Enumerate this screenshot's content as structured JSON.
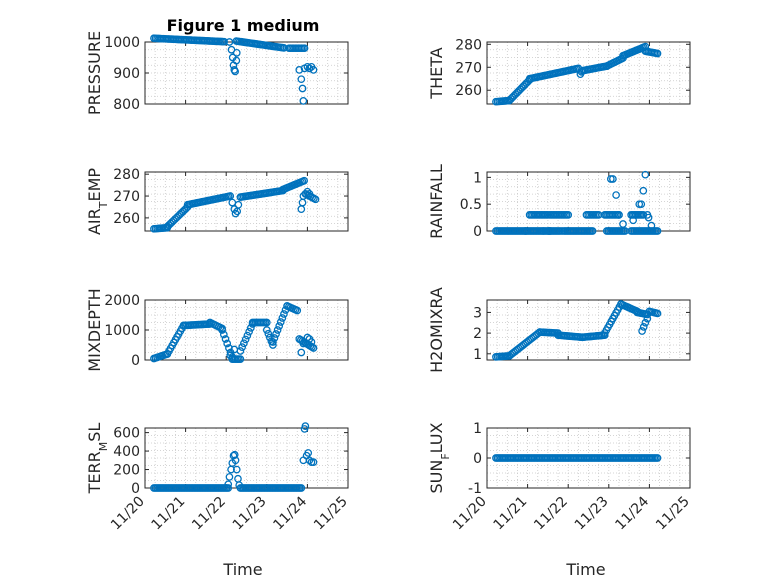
{
  "figure_title": "Figure 1 medium",
  "chart_data": [
    {
      "type": "scatter",
      "ylabel": "PRESSURE",
      "ylim": [
        800,
        1000
      ],
      "yticks": [
        800,
        900,
        1000
      ],
      "xlim": [
        "11/20",
        "11/25"
      ],
      "xticks": [
        "11/20",
        "11/21",
        "11/22",
        "11/23",
        "11/24",
        "11/25"
      ],
      "grid": true,
      "segments": [
        {
          "t": [
            0.22,
            1.95
          ],
          "y": [
            1012,
            1001
          ]
        },
        {
          "t": [
            2.25,
            3.42
          ],
          "y": [
            1003,
            981
          ]
        },
        {
          "t": [
            3.55,
            3.93
          ],
          "y": [
            980,
            980
          ]
        }
      ],
      "extra": [
        [
          2.08,
          1000
        ],
        [
          2.13,
          975
        ],
        [
          2.16,
          950
        ],
        [
          2.18,
          925
        ],
        [
          2.2,
          910
        ],
        [
          2.22,
          905
        ],
        [
          2.25,
          940
        ],
        [
          2.26,
          965
        ],
        [
          3.8,
          910
        ],
        [
          3.85,
          880
        ],
        [
          3.88,
          850
        ],
        [
          3.9,
          810
        ],
        [
          3.93,
          915
        ],
        [
          4.0,
          920
        ],
        [
          4.05,
          915
        ],
        [
          4.1,
          920
        ],
        [
          4.15,
          910
        ]
      ]
    },
    {
      "type": "scatter",
      "ylabel": "THETA",
      "ylim": [
        254,
        281
      ],
      "yticks": [
        260,
        270,
        280
      ],
      "xlim": [
        "11/20",
        "11/25"
      ],
      "xticks": [
        "11/20",
        "11/21",
        "11/22",
        "11/23",
        "11/24",
        "11/25"
      ],
      "grid": true,
      "segments": [
        {
          "t": [
            0.22,
            0.55
          ],
          "y": [
            255,
            255.5
          ]
        },
        {
          "t": [
            0.55,
            1.05
          ],
          "y": [
            255.5,
            264.5
          ]
        },
        {
          "t": [
            1.05,
            2.25
          ],
          "y": [
            265,
            269.5
          ]
        },
        {
          "t": [
            2.35,
            2.95
          ],
          "y": [
            268.5,
            270.5
          ]
        },
        {
          "t": [
            2.95,
            3.35
          ],
          "y": [
            270.5,
            274
          ]
        },
        {
          "t": [
            3.35,
            3.9
          ],
          "y": [
            275,
            279
          ]
        },
        {
          "t": [
            3.9,
            4.2
          ],
          "y": [
            277,
            276
          ]
        }
      ],
      "extra": [
        [
          2.3,
          267
        ],
        [
          2.33,
          268
        ]
      ]
    },
    {
      "type": "scatter",
      "ylabel": "AIR_TEMP",
      "ylim": [
        254,
        281
      ],
      "yticks": [
        260,
        270,
        280
      ],
      "xlim": [
        "11/20",
        "11/25"
      ],
      "xticks": [
        "11/20",
        "11/21",
        "11/22",
        "11/23",
        "11/24",
        "11/25"
      ],
      "grid": true,
      "segments": [
        {
          "t": [
            0.22,
            0.55
          ],
          "y": [
            255,
            255.5
          ]
        },
        {
          "t": [
            0.55,
            1.05
          ],
          "y": [
            256,
            265
          ]
        },
        {
          "t": [
            1.05,
            2.1
          ],
          "y": [
            266,
            270
          ]
        },
        {
          "t": [
            2.35,
            3.4
          ],
          "y": [
            269.5,
            272.5
          ]
        },
        {
          "t": [
            3.4,
            3.92
          ],
          "y": [
            273,
            277
          ]
        },
        {
          "t": [
            3.95,
            4.2
          ],
          "y": [
            271,
            268.5
          ]
        }
      ],
      "extra": [
        [
          2.15,
          267
        ],
        [
          2.2,
          264
        ],
        [
          2.23,
          262
        ],
        [
          2.27,
          263
        ],
        [
          2.3,
          266
        ],
        [
          3.85,
          264
        ],
        [
          3.88,
          267
        ],
        [
          3.9,
          270
        ],
        [
          4.0,
          272
        ],
        [
          4.05,
          271
        ]
      ]
    },
    {
      "type": "scatter",
      "ylabel": "RAINFALL",
      "ylim": [
        0,
        1.1
      ],
      "yticks": [
        0,
        0.5,
        1
      ],
      "ytickLabels": [
        "0",
        "0.5",
        "1"
      ],
      "xlim": [
        "11/20",
        "11/25"
      ],
      "xticks": [
        "11/20",
        "11/21",
        "11/22",
        "11/23",
        "11/24",
        "11/25"
      ],
      "grid": true,
      "segments": [
        {
          "t": [
            0.22,
            0.95
          ],
          "y": [
            0,
            0
          ]
        },
        {
          "t": [
            0.95,
            1.38
          ],
          "y": [
            0,
            0
          ]
        },
        {
          "t": [
            1.4,
            1.8
          ],
          "y": [
            0,
            0
          ]
        },
        {
          "t": [
            1.9,
            2.6
          ],
          "y": [
            0,
            0
          ]
        },
        {
          "t": [
            2.95,
            3.4
          ],
          "y": [
            0,
            0
          ]
        },
        {
          "t": [
            3.55,
            4.2
          ],
          "y": [
            0,
            0
          ]
        },
        {
          "t": [
            1.05,
            1.5
          ],
          "y": [
            0.3,
            0.3
          ]
        },
        {
          "t": [
            1.55,
            2.0
          ],
          "y": [
            0.3,
            0.3
          ]
        },
        {
          "t": [
            2.45,
            2.75
          ],
          "y": [
            0.3,
            0.3
          ]
        },
        {
          "t": [
            2.9,
            3.25
          ],
          "y": [
            0.3,
            0.3
          ]
        },
        {
          "t": [
            3.55,
            3.85
          ],
          "y": [
            0.3,
            0.3
          ]
        }
      ],
      "extra": [
        [
          1.52,
          0
        ],
        [
          1.55,
          0
        ],
        [
          1.85,
          0
        ],
        [
          3.05,
          0.97
        ],
        [
          3.1,
          0.97
        ],
        [
          3.18,
          0.67
        ],
        [
          3.25,
          0.3
        ],
        [
          3.35,
          0.13
        ],
        [
          3.6,
          0.2
        ],
        [
          3.75,
          0.5
        ],
        [
          3.8,
          0.5
        ],
        [
          3.85,
          0.75
        ],
        [
          3.9,
          1.05
        ],
        [
          3.95,
          0.3
        ],
        [
          4.05,
          0.1
        ],
        [
          3.98,
          0.25
        ]
      ]
    },
    {
      "type": "scatter",
      "ylabel": "MIXDEPTH",
      "ylim": [
        0,
        2000
      ],
      "yticks": [
        0,
        1000,
        2000
      ],
      "xlim": [
        "11/20",
        "11/25"
      ],
      "xticks": [
        "11/20",
        "11/21",
        "11/22",
        "11/23",
        "11/24",
        "11/25"
      ],
      "grid": true,
      "segments": [
        {
          "t": [
            0.22,
            0.55
          ],
          "y": [
            50,
            200
          ]
        },
        {
          "t": [
            0.55,
            0.95
          ],
          "y": [
            200,
            1150
          ]
        },
        {
          "t": [
            0.95,
            1.6
          ],
          "y": [
            1150,
            1200
          ]
        },
        {
          "t": [
            1.6,
            1.9
          ],
          "y": [
            1250,
            1050
          ]
        },
        {
          "t": [
            1.9,
            2.15
          ],
          "y": [
            1000,
            100
          ]
        },
        {
          "t": [
            2.15,
            2.35
          ],
          "y": [
            30,
            30
          ]
        },
        {
          "t": [
            2.35,
            2.65
          ],
          "y": [
            300,
            1200
          ]
        },
        {
          "t": [
            2.65,
            3.0
          ],
          "y": [
            1250,
            1250
          ]
        },
        {
          "t": [
            3.0,
            3.15
          ],
          "y": [
            1000,
            500
          ]
        },
        {
          "t": [
            3.15,
            3.5
          ],
          "y": [
            600,
            1800
          ]
        },
        {
          "t": [
            3.5,
            3.75
          ],
          "y": [
            1800,
            1650
          ]
        },
        {
          "t": [
            3.8,
            4.15
          ],
          "y": [
            700,
            400
          ]
        }
      ],
      "extra": [
        [
          2.1,
          150
        ],
        [
          2.2,
          350
        ],
        [
          3.85,
          250
        ],
        [
          3.9,
          550
        ],
        [
          4.0,
          750
        ],
        [
          4.05,
          700
        ],
        [
          4.1,
          600
        ]
      ]
    },
    {
      "type": "scatter",
      "ylabel": "H2OMIXRA",
      "ylim": [
        0.7,
        3.6
      ],
      "yticks": [
        1,
        2,
        3
      ],
      "xlim": [
        "11/20",
        "11/25"
      ],
      "xticks": [
        "11/20",
        "11/21",
        "11/22",
        "11/23",
        "11/24",
        "11/25"
      ],
      "grid": true,
      "segments": [
        {
          "t": [
            0.22,
            0.55
          ],
          "y": [
            0.85,
            0.9
          ]
        },
        {
          "t": [
            0.55,
            1.3
          ],
          "y": [
            0.9,
            2.05
          ]
        },
        {
          "t": [
            1.3,
            1.75
          ],
          "y": [
            2.05,
            2.0
          ]
        },
        {
          "t": [
            1.75,
            2.35
          ],
          "y": [
            1.9,
            1.8
          ]
        },
        {
          "t": [
            2.35,
            2.9
          ],
          "y": [
            1.8,
            1.9
          ]
        },
        {
          "t": [
            2.9,
            3.3
          ],
          "y": [
            2.0,
            3.4
          ]
        },
        {
          "t": [
            3.3,
            3.7
          ],
          "y": [
            3.4,
            3.05
          ]
        },
        {
          "t": [
            3.7,
            3.95
          ],
          "y": [
            3.0,
            2.9
          ]
        },
        {
          "t": [
            4.0,
            4.2
          ],
          "y": [
            3.05,
            2.95
          ]
        }
      ],
      "extra": [
        [
          3.82,
          2.1
        ],
        [
          3.86,
          2.3
        ],
        [
          3.9,
          2.5
        ],
        [
          3.95,
          2.7
        ]
      ]
    },
    {
      "type": "scatter",
      "ylabel": "TERR_MSL",
      "ylim": [
        0,
        650
      ],
      "yticks": [
        0,
        200,
        400,
        600
      ],
      "xlim": [
        "11/20",
        "11/25"
      ],
      "xticks": [
        "11/20",
        "11/21",
        "11/22",
        "11/23",
        "11/24",
        "11/25"
      ],
      "grid": true,
      "segments": [
        {
          "t": [
            0.22,
            2.05
          ],
          "y": [
            0,
            0
          ]
        },
        {
          "t": [
            2.35,
            3.85
          ],
          "y": [
            0,
            0
          ]
        }
      ],
      "extra": [
        [
          2.05,
          40
        ],
        [
          2.08,
          120
        ],
        [
          2.12,
          200
        ],
        [
          2.15,
          270
        ],
        [
          2.18,
          350
        ],
        [
          2.21,
          360
        ],
        [
          2.23,
          300
        ],
        [
          2.26,
          200
        ],
        [
          2.29,
          100
        ],
        [
          2.32,
          30
        ],
        [
          3.9,
          300
        ],
        [
          3.93,
          640
        ],
        [
          3.95,
          670
        ],
        [
          3.98,
          350
        ],
        [
          4.02,
          380
        ],
        [
          4.05,
          300
        ],
        [
          4.1,
          280
        ],
        [
          4.15,
          280
        ]
      ]
    },
    {
      "type": "scatter",
      "ylabel": "SUN_FLUX",
      "ylim": [
        -1,
        1
      ],
      "yticks": [
        -1,
        0,
        1
      ],
      "xlim": [
        "11/20",
        "11/25"
      ],
      "xticks": [
        "11/20",
        "11/21",
        "11/22",
        "11/23",
        "11/24",
        "11/25"
      ],
      "grid": true,
      "segments": [
        {
          "t": [
            0.22,
            4.2
          ],
          "y": [
            0,
            0
          ]
        }
      ],
      "extra": []
    }
  ],
  "xlabels": [
    "Time",
    "Time"
  ],
  "colors": {
    "marker": "#0072BD",
    "axis": "#262626",
    "grid": "#c8c8c8"
  }
}
